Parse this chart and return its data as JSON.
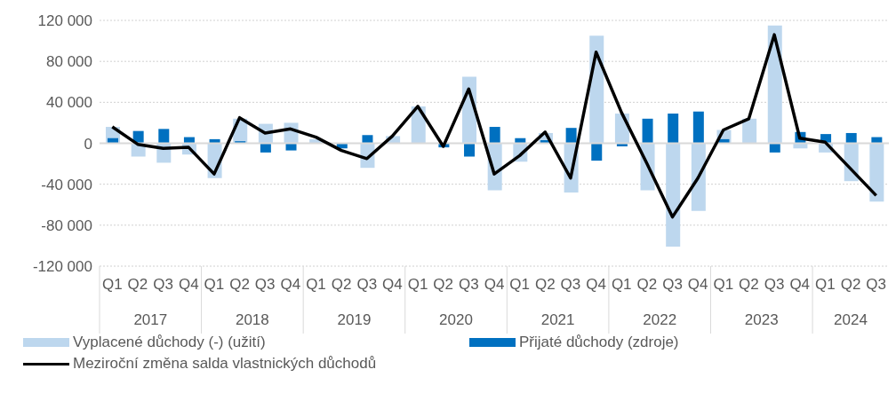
{
  "chart_data": {
    "type": "bar",
    "categories": [
      "Q1",
      "Q2",
      "Q3",
      "Q4",
      "Q1",
      "Q2",
      "Q3",
      "Q4",
      "Q1",
      "Q2",
      "Q3",
      "Q4",
      "Q1",
      "Q2",
      "Q3",
      "Q4",
      "Q1",
      "Q2",
      "Q3",
      "Q4",
      "Q1",
      "Q2",
      "Q3",
      "Q4",
      "Q1",
      "Q2",
      "Q3",
      "Q4",
      "Q1",
      "Q2",
      "Q3"
    ],
    "annotations": [
      "2017",
      "2018",
      "2019",
      "2020",
      "2021",
      "2022",
      "2023",
      "2024"
    ],
    "series": [
      {
        "name": "Vyplacené důchody (-) (užití)",
        "color": "#bdd7ee",
        "values": [
          16000,
          -13000,
          -19000,
          -11000,
          -34000,
          24000,
          19000,
          20000,
          4000,
          null,
          -24000,
          7000,
          36000,
          null,
          65000,
          -46000,
          -18000,
          10000,
          -48000,
          105000,
          29000,
          -46000,
          -101000,
          -66000,
          13000,
          24000,
          115000,
          -5000,
          -9000,
          -37000,
          -57000
        ]
      },
      {
        "name": "Přijaté důchody (zdroje)",
        "color": "#0070c0",
        "values": [
          5000,
          12000,
          14000,
          6000,
          4000,
          2000,
          -9000,
          -7000,
          0,
          -5000,
          8000,
          0,
          0,
          -4000,
          -13000,
          16000,
          5000,
          3000,
          15000,
          -17000,
          -3000,
          24000,
          29000,
          31000,
          4000,
          0,
          -9000,
          11000,
          9000,
          10000,
          6000
        ]
      },
      {
        "name": "Meziroční změna salda vlastnických důchodů",
        "type": "line",
        "color": "#000000",
        "values": [
          16000,
          -1000,
          -5000,
          -4000,
          -30000,
          25000,
          10000,
          14000,
          6000,
          -7000,
          -15000,
          7000,
          36000,
          -3000,
          53000,
          -30000,
          -12000,
          11000,
          -34000,
          89000,
          30000,
          -20000,
          -72000,
          -34000,
          13000,
          24000,
          106000,
          5000,
          1000,
          -25000,
          -51000
        ]
      }
    ],
    "ylim": [
      -120000,
      120000
    ],
    "yticks": [
      -120000,
      -80000,
      -40000,
      0,
      40000,
      80000,
      120000
    ],
    "grid": "y",
    "legend": "bottom"
  }
}
